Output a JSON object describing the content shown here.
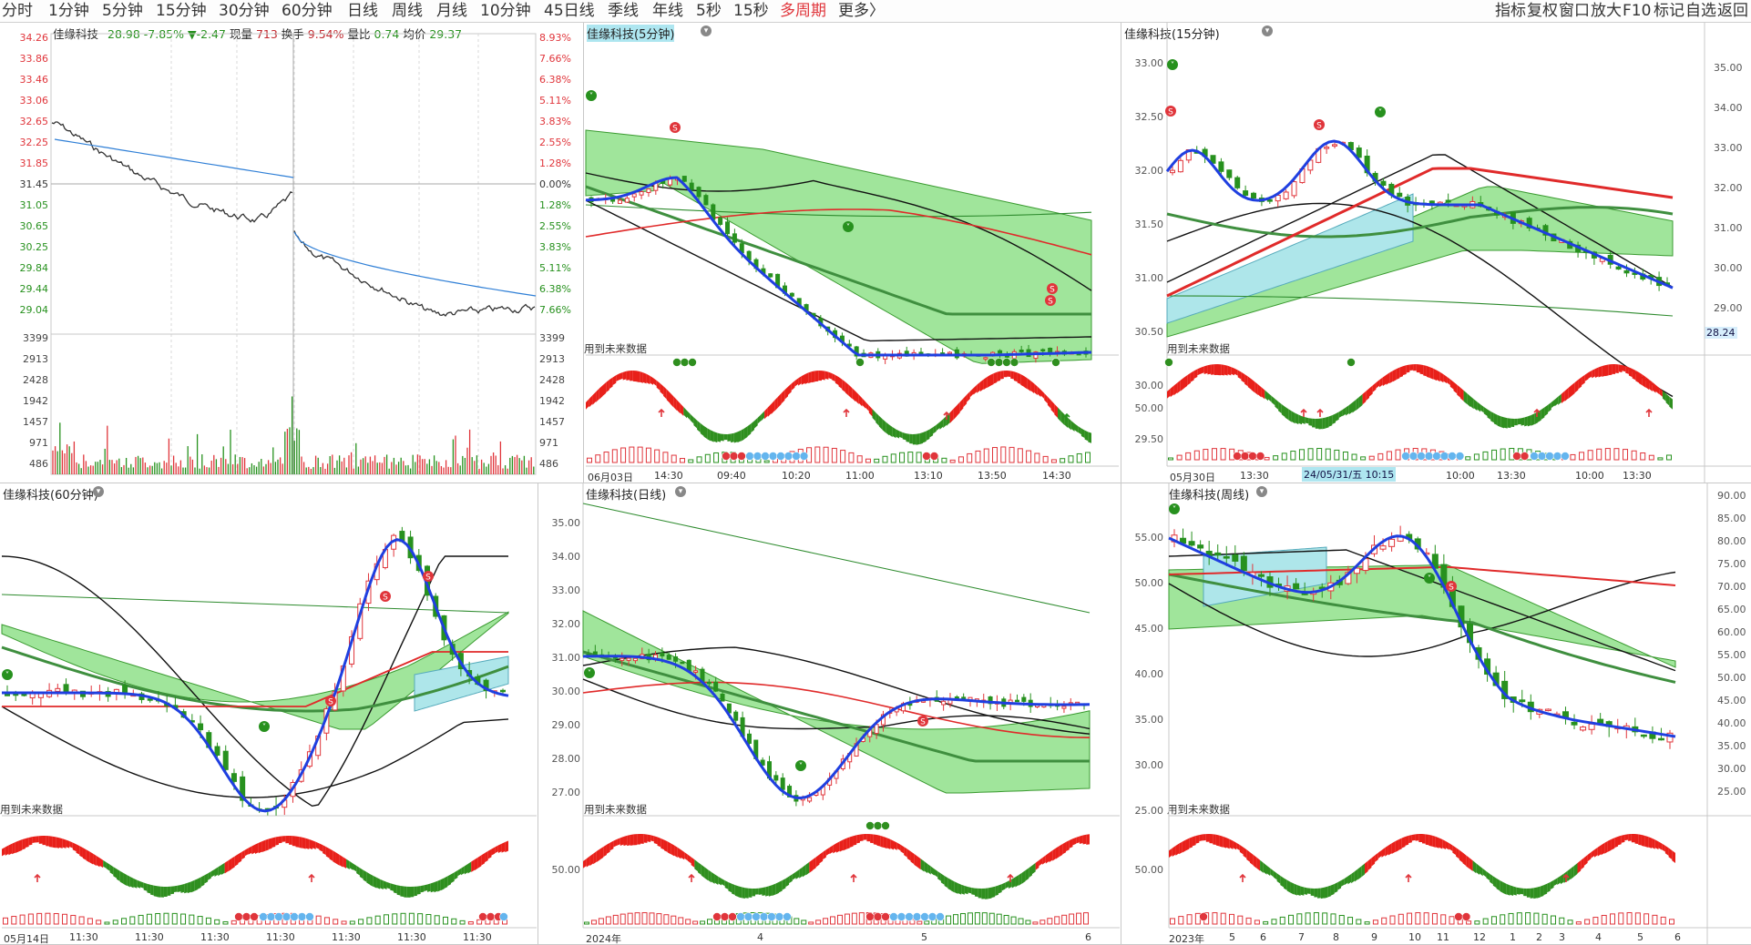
{
  "toolbar": {
    "periods": [
      "分时",
      "1分钟",
      "5分钟",
      "15分钟",
      "30分钟",
      "60分钟",
      "日线",
      "周线",
      "月线",
      "10分钟",
      "45日线",
      "季线",
      "年线",
      "5秒",
      "15秒"
    ],
    "multi_period": "多周期",
    "more": "更多〉",
    "right_items": [
      "指标",
      "复权",
      "窗口",
      "放大",
      "F10",
      "标记",
      "自选",
      "返回"
    ]
  },
  "intraday": {
    "name": "佳缘科技",
    "price": "28.98",
    "change_pct": "-7.85%",
    "change": "▼-2.47",
    "volume_label": "现量",
    "volume": "713",
    "turnover_label": "换手",
    "turnover": "9.54%",
    "ratio_label": "量比",
    "ratio": "0.74",
    "avg_label": "均价",
    "avg": "29.37",
    "left_axis": [
      "34.26",
      "33.86",
      "33.46",
      "33.06",
      "32.65",
      "32.25",
      "31.85",
      "31.45",
      "31.05",
      "30.65",
      "30.25",
      "29.84",
      "29.44",
      "29.04",
      "3399",
      "2913",
      "2428",
      "1942",
      "1457",
      "971",
      "486"
    ],
    "right_axis": [
      "8.93%",
      "7.66%",
      "6.38%",
      "5.11%",
      "3.83%",
      "2.55%",
      "1.28%",
      "0.00%",
      "1.28%",
      "2.55%",
      "3.83%",
      "5.11%",
      "6.38%",
      "7.66%",
      "3399",
      "2913",
      "2428",
      "1942",
      "1457",
      "971",
      "486"
    ],
    "right_red_count": 7,
    "colors": {
      "price": "#333333",
      "avg": "#2f7fd6",
      "up": "#e0353b",
      "down": "#27911e"
    }
  },
  "panels": {
    "p5": {
      "title": "佳缘科技(5分钟)",
      "future_label": "用到未来数据",
      "x_labels": [
        "06月03日",
        "14:30",
        "09:40",
        "10:20",
        "11:00",
        "13:10",
        "13:50",
        "14:30"
      ],
      "osc_label": ""
    },
    "p15": {
      "title": "佳缘科技(15分钟)",
      "future_label": "用到未来数据",
      "y_axis": [
        "33.00",
        "32.50",
        "32.00",
        "31.50",
        "31.00",
        "30.50",
        "30.00",
        "29.50",
        "29.00"
      ],
      "right_axis": [
        "35.00",
        "34.00",
        "33.00",
        "32.00",
        "31.00",
        "30.00",
        "29.00"
      ],
      "price_tag": "28.24",
      "osc_label": "50.00",
      "x_labels": [
        "05月30日",
        "13:30",
        "10:00",
        "13:30",
        "10:00",
        "13:30"
      ],
      "x_badge": "24/05/31/五 10:15"
    },
    "p60": {
      "title": "佳缘科技(60分钟)",
      "future_label": "用到未来数据",
      "x_labels": [
        "05月14日",
        "11:30",
        "11:30",
        "11:30",
        "11:30",
        "11:30",
        "11:30",
        "11:30"
      ]
    },
    "pday": {
      "title": "佳缘科技(日线)",
      "future_label": "用到未来数据",
      "y_axis": [
        "35.00",
        "34.00",
        "33.00",
        "32.00",
        "31.00",
        "30.00",
        "29.00",
        "28.00",
        "27.00"
      ],
      "osc_label": "50.00",
      "x_labels": [
        "2024年",
        "4",
        "5",
        "6"
      ]
    },
    "pweek": {
      "title": "佳缘科技(周线)",
      "future_label": "用到未来数据",
      "y_axis": [
        "55.00",
        "50.00",
        "45.00",
        "40.00",
        "35.00",
        "30.00",
        "25.00"
      ],
      "right_axis": [
        "90.00",
        "85.00",
        "80.00",
        "75.00",
        "70.00",
        "65.00",
        "60.00",
        "55.00",
        "50.00",
        "45.00",
        "40.00",
        "35.00",
        "30.00",
        "25.00"
      ],
      "osc_label": "50.00",
      "x_labels": [
        "2023年",
        "5",
        "6",
        "7",
        "8",
        "9",
        "10",
        "11",
        "12",
        "1",
        "2",
        "3",
        "4",
        "5",
        "6"
      ]
    }
  }
}
